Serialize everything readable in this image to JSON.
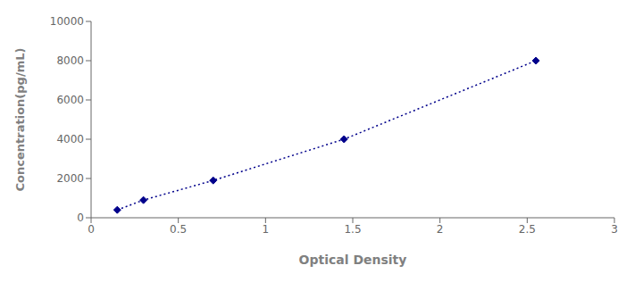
{
  "chart_data": {
    "type": "line",
    "x": [
      0.15,
      0.3,
      0.7,
      1.45,
      2.55
    ],
    "values": [
      400,
      900,
      1900,
      4000,
      8000
    ],
    "color": "#00008B",
    "marker": "diamond",
    "line_style": "dotted",
    "xlabel": "Optical Density",
    "ylabel": "Concentration(pg/mL)",
    "xlim": [
      0,
      3
    ],
    "ylim": [
      0,
      10000
    ],
    "xticks": [
      0,
      0.5,
      1,
      1.5,
      2,
      2.5,
      3
    ],
    "yticks": [
      0,
      2000,
      4000,
      6000,
      8000,
      10000
    ]
  }
}
